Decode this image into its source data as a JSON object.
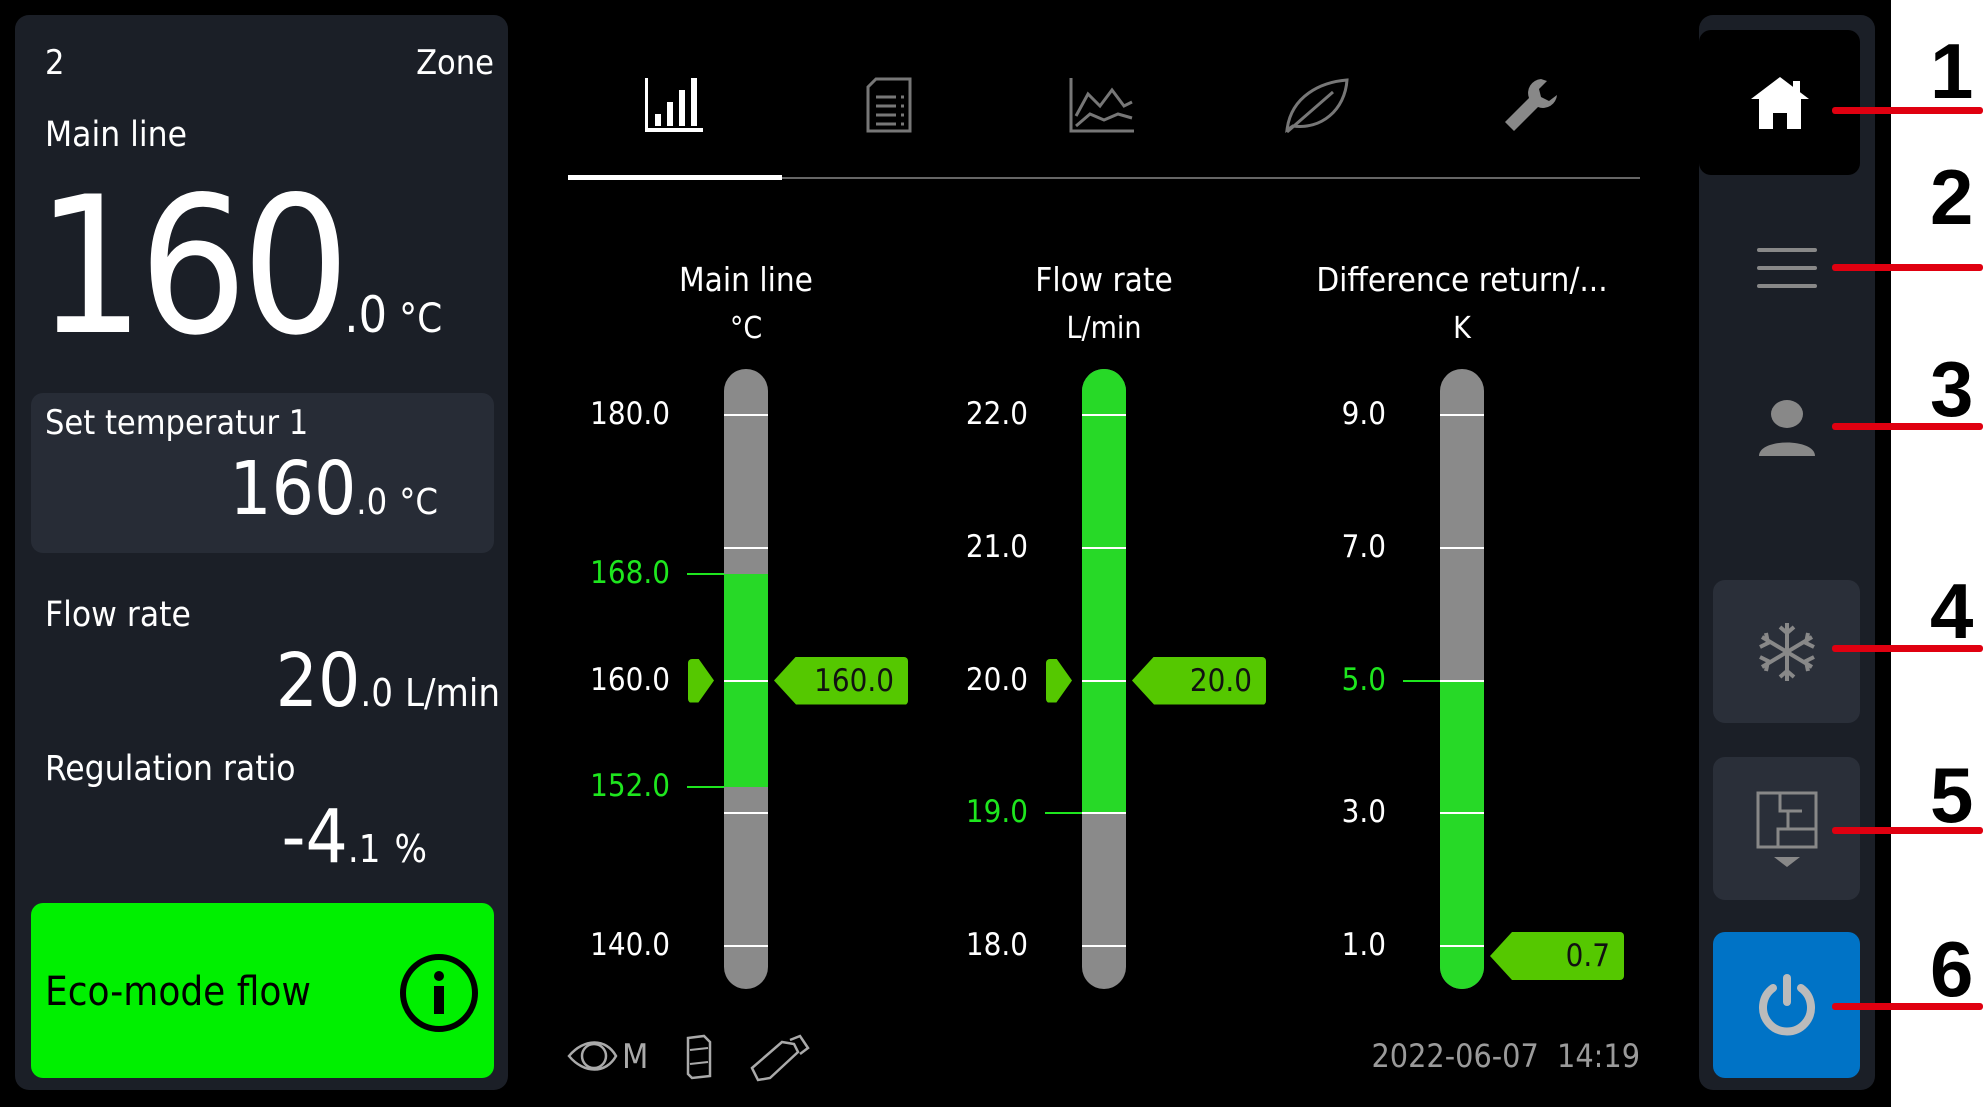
{
  "left_panel": {
    "zone_number": "2",
    "zone_label": "Zone",
    "main_line_label": "Main line",
    "main_line_int": "160",
    "main_line_dec": ".0",
    "main_line_unit": "°C",
    "set_temp_label": "Set temperatur 1",
    "set_temp_int": "160",
    "set_temp_dec": ".0",
    "set_temp_unit": "°C",
    "flow_label": "Flow rate",
    "flow_int": "20",
    "flow_dec": ".0",
    "flow_unit": "L/min",
    "reg_label": "Regulation ratio",
    "reg_int": "-4",
    "reg_dec": ".1",
    "reg_unit": "%",
    "eco_label": "Eco-mode flow",
    "eco_color": "#00f000"
  },
  "tabs": [
    {
      "icon": "bar-chart-icon",
      "active": true
    },
    {
      "icon": "document-list-icon",
      "active": false
    },
    {
      "icon": "line-chart-icon",
      "active": false
    },
    {
      "icon": "leaf-icon",
      "active": false
    },
    {
      "icon": "wrench-icon",
      "active": false
    }
  ],
  "gauges": [
    {
      "title": "Main line",
      "unit": "°C",
      "min": 140,
      "max": 180,
      "ticks": [
        180,
        170,
        160,
        150,
        140
      ],
      "labels": [
        {
          "v": 180,
          "t": "180.0"
        },
        {
          "v": 168,
          "t": "168.0",
          "green": true
        },
        {
          "v": 160,
          "t": "160.0"
        },
        {
          "v": 152,
          "t": "152.0",
          "green": true
        },
        {
          "v": 140,
          "t": "140.0"
        }
      ],
      "band": [
        152,
        168
      ],
      "setpoint": 160,
      "value": 160,
      "value_text": "160.0"
    },
    {
      "title": "Flow rate",
      "unit": "L/min",
      "min": 18,
      "max": 22,
      "ticks": [
        22,
        21,
        20,
        19,
        18
      ],
      "labels": [
        {
          "v": 22,
          "t": "22.0"
        },
        {
          "v": 21,
          "t": "21.0"
        },
        {
          "v": 20,
          "t": "20.0"
        },
        {
          "v": 19,
          "t": "19.0",
          "green": true
        },
        {
          "v": 18,
          "t": "18.0"
        }
      ],
      "band": [
        19,
        null
      ],
      "setpoint": 20,
      "value": 20,
      "value_text": "20.0"
    },
    {
      "title": "Difference return/...",
      "unit": "K",
      "min": 1,
      "max": 9,
      "ticks": [
        9,
        7,
        5,
        3,
        1
      ],
      "labels": [
        {
          "v": 9,
          "t": "9.0"
        },
        {
          "v": 7,
          "t": "7.0"
        },
        {
          "v": 5,
          "t": "5.0",
          "green": true
        },
        {
          "v": 3,
          "t": "3.0"
        },
        {
          "v": 1,
          "t": "1.0"
        }
      ],
      "band": [
        null,
        5
      ],
      "setpoint": null,
      "value": 0.7,
      "value_text": "0.7"
    }
  ],
  "status_bar": {
    "icons": [
      "eye-m-icon",
      "cylinder-icon",
      "usb-stick-icon"
    ],
    "eye_m_text": "M",
    "datetime": "2022-06-07  14:19"
  },
  "sidebar": {
    "items": [
      "home-icon",
      "menu-icon",
      "user-icon",
      "snowflake-icon",
      "plant-diagram-icon",
      "power-icon"
    ],
    "power_color": "#0073c6"
  },
  "callouts": [
    "1",
    "2",
    "3",
    "4",
    "5",
    "6"
  ],
  "colors": {
    "green": "#27d927",
    "marker_green": "#55c800",
    "gray_bar": "#8a8a8a",
    "label_green": "#1ee61e"
  }
}
